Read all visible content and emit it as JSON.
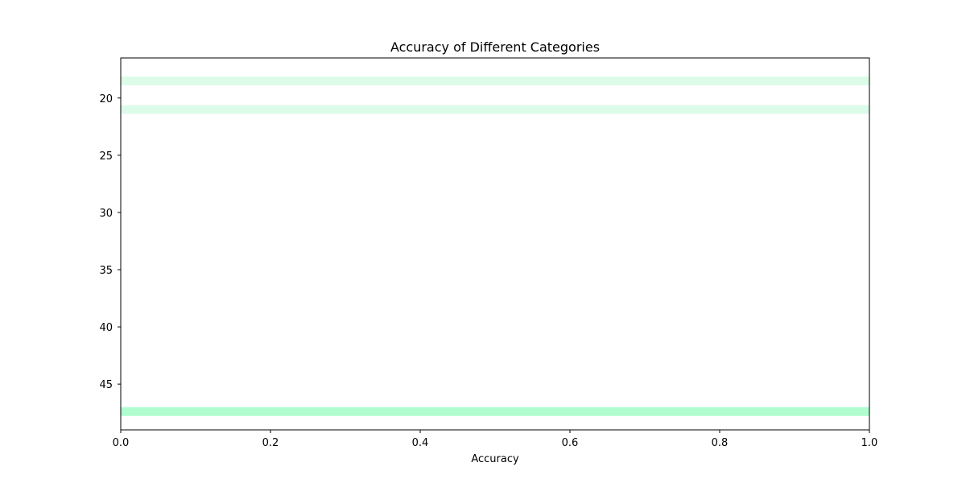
{
  "chart_data": {
    "type": "bar",
    "orientation": "horizontal",
    "title": "Accuracy of Different Categories",
    "xlabel": "Accuracy",
    "ylabel": "",
    "xlim": [
      0.0,
      1.0
    ],
    "ylim": [
      49,
      16.5
    ],
    "x_ticks": [
      "0.0",
      "0.2",
      "0.4",
      "0.6",
      "0.8",
      "1.0"
    ],
    "y_ticks": [
      "20",
      "25",
      "30",
      "35",
      "40",
      "45"
    ],
    "grid": false,
    "bars": [
      {
        "y": 18.5,
        "value": 1.0,
        "color": "#ddfbe9"
      },
      {
        "y": 21.0,
        "value": 1.0,
        "color": "#ddfbe9"
      },
      {
        "y": 47.4,
        "value": 1.0,
        "color": "#b0fdd0"
      }
    ]
  }
}
